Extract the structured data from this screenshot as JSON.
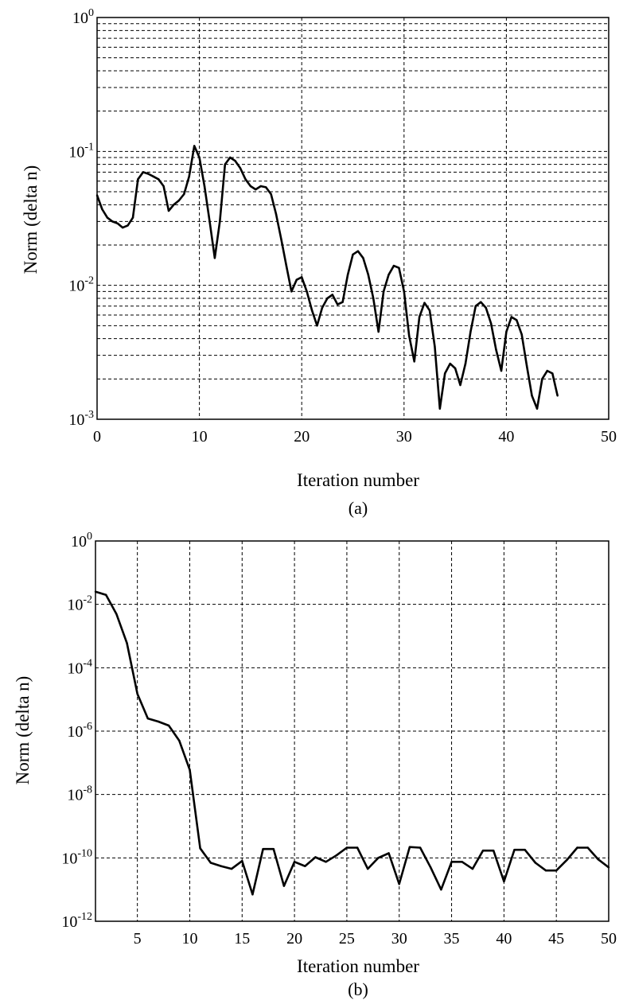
{
  "chart_data": [
    {
      "type": "line",
      "panel_label": "(a)",
      "xlabel": "Iteration number",
      "ylabel": "Norm (delta n)",
      "xlim": [
        0,
        50
      ],
      "ylim": [
        0.001,
        1
      ],
      "yscale": "log",
      "grid": true,
      "x_ticks": [
        "0",
        "10",
        "20",
        "30",
        "40",
        "50"
      ],
      "y_ticks": [
        {
          "base": "10",
          "exp": "0"
        },
        {
          "base": "10",
          "exp": "-1"
        },
        {
          "base": "10",
          "exp": "-2"
        },
        {
          "base": "10",
          "exp": "-3"
        }
      ],
      "series": [
        {
          "x": [
            0,
            0.5,
            1,
            1.5,
            2,
            2.5,
            3,
            3.5,
            4,
            4.5,
            5,
            5.5,
            6,
            6.5,
            7,
            7.5,
            8,
            8.5,
            9,
            9.5,
            10,
            10.5,
            11,
            11.5,
            12,
            12.5,
            13,
            13.5,
            14,
            14.5,
            15,
            15.5,
            16,
            16.5,
            17,
            17.5,
            18,
            18.5,
            19,
            19.5,
            20,
            20.5,
            21,
            21.5,
            22,
            22.5,
            23,
            23.5,
            24,
            24.5,
            25,
            25.5,
            26,
            26.5,
            27,
            27.5,
            28,
            28.5,
            29,
            29.5,
            30,
            30.5,
            31,
            31.5,
            32,
            32.5,
            33,
            33.5,
            34,
            34.5,
            35,
            35.5,
            36,
            36.5,
            37,
            37.5,
            38,
            38.5,
            39,
            39.5,
            40,
            40.5,
            41,
            41.5,
            42,
            42.5,
            43,
            43.5,
            44,
            44.5,
            45
          ],
          "y": [
            0.047,
            0.037,
            0.032,
            0.03,
            0.029,
            0.027,
            0.028,
            0.032,
            0.062,
            0.07,
            0.068,
            0.065,
            0.062,
            0.055,
            0.036,
            0.04,
            0.043,
            0.048,
            0.065,
            0.11,
            0.09,
            0.055,
            0.03,
            0.016,
            0.03,
            0.08,
            0.09,
            0.085,
            0.075,
            0.062,
            0.055,
            0.052,
            0.055,
            0.054,
            0.048,
            0.034,
            0.022,
            0.014,
            0.009,
            0.011,
            0.0115,
            0.009,
            0.0065,
            0.005,
            0.0068,
            0.008,
            0.0085,
            0.0072,
            0.0075,
            0.012,
            0.017,
            0.018,
            0.016,
            0.012,
            0.008,
            0.0045,
            0.009,
            0.012,
            0.014,
            0.0135,
            0.009,
            0.0042,
            0.0027,
            0.0058,
            0.0074,
            0.0065,
            0.0035,
            0.0012,
            0.0022,
            0.0026,
            0.0024,
            0.0018,
            0.0026,
            0.0045,
            0.007,
            0.0075,
            0.0068,
            0.0052,
            0.0033,
            0.0023,
            0.0045,
            0.0058,
            0.0055,
            0.0043,
            0.0025,
            0.0015,
            0.0012,
            0.002,
            0.0023,
            0.0022,
            0.0015
          ]
        }
      ]
    },
    {
      "type": "line",
      "panel_label": "(b)",
      "xlabel": "Iteration number",
      "ylabel": "Norm (delta n)",
      "xlim": [
        1,
        50
      ],
      "ylim": [
        1e-12,
        1
      ],
      "yscale": "log",
      "grid": true,
      "x_ticks": [
        "5",
        "10",
        "15",
        "20",
        "25",
        "30",
        "35",
        "40",
        "45",
        "50"
      ],
      "y_ticks": [
        {
          "base": "10",
          "exp": "0"
        },
        {
          "base": "10",
          "exp": "-2"
        },
        {
          "base": "10",
          "exp": "-4"
        },
        {
          "base": "10",
          "exp": "-6"
        },
        {
          "base": "10",
          "exp": "-8"
        },
        {
          "base": "10",
          "exp": "-10"
        },
        {
          "base": "10",
          "exp": "-12"
        }
      ],
      "series": [
        {
          "x": [
            1,
            2,
            3,
            4,
            5,
            6,
            7,
            8,
            9,
            10,
            11,
            12,
            13,
            14,
            15,
            16,
            17,
            18,
            19,
            20,
            21,
            22,
            23,
            24,
            25,
            26,
            27,
            28,
            29,
            30,
            31,
            32,
            33,
            34,
            35,
            36,
            37,
            38,
            39,
            40,
            41,
            42,
            43,
            44,
            45,
            46,
            47,
            48,
            49,
            50
          ],
          "y": [
            0.025,
            0.02,
            0.005,
            0.0006,
            1.5e-05,
            2.5e-06,
            2e-06,
            1.5e-06,
            5e-07,
            6e-08,
            2e-10,
            7e-11,
            5.5e-11,
            4.5e-11,
            8e-11,
            7e-12,
            1.9e-10,
            1.9e-10,
            1.3e-11,
            7.5e-11,
            5.5e-11,
            1.05e-10,
            7.5e-11,
            1.2e-10,
            2.1e-10,
            2.1e-10,
            4.5e-11,
            1e-10,
            1.4e-10,
            1.5e-11,
            2.2e-10,
            2.1e-10,
            5e-11,
            1e-11,
            7.5e-11,
            7.5e-11,
            4.5e-11,
            1.7e-10,
            1.7e-10,
            1.8e-11,
            1.8e-10,
            1.8e-10,
            7e-11,
            4e-11,
            4e-11,
            8.5e-11,
            2.1e-10,
            2.1e-10,
            9e-11,
            5e-11
          ]
        }
      ]
    }
  ]
}
